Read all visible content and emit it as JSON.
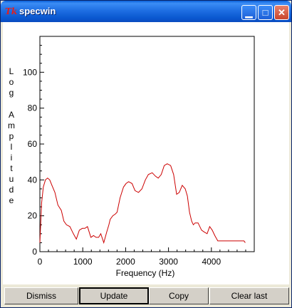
{
  "window": {
    "title": "specwin",
    "icon": "tk-feather-icon",
    "controls": {
      "minimize": "minimize-icon",
      "maximize": "maximize-icon",
      "close": "close-icon"
    }
  },
  "chart_data": {
    "type": "line",
    "title": "",
    "xlabel": "Frequency (Hz)",
    "ylabel": "Log Amplitude",
    "xlim": [
      0,
      5000
    ],
    "ylim": [
      0,
      120
    ],
    "x_ticks": [
      0,
      1000,
      2000,
      3000,
      4000
    ],
    "y_ticks": [
      0,
      20,
      40,
      60,
      80,
      100
    ],
    "grid": false,
    "series_color": "#cc0000",
    "x": [
      0,
      40,
      80,
      130,
      180,
      230,
      280,
      350,
      420,
      500,
      560,
      620,
      700,
      780,
      850,
      920,
      990,
      1050,
      1110,
      1190,
      1250,
      1310,
      1370,
      1420,
      1490,
      1560,
      1610,
      1640,
      1700,
      1760,
      1800,
      1870,
      1950,
      2010,
      2070,
      2150,
      2220,
      2300,
      2380,
      2460,
      2530,
      2620,
      2700,
      2760,
      2830,
      2900,
      2970,
      3050,
      3120,
      3190,
      3250,
      3320,
      3390,
      3440,
      3490,
      3540,
      3580,
      3620,
      3690,
      3770,
      3830,
      3900,
      3960,
      4020,
      4080,
      4150,
      4210,
      4260,
      4330,
      4400,
      4480,
      4550,
      4610,
      4670,
      4730,
      4760,
      4790
    ],
    "y": [
      5,
      27,
      36,
      40,
      41,
      40,
      37,
      33,
      26,
      23,
      17,
      15,
      14,
      10,
      7,
      12,
      13,
      13,
      14,
      8,
      9,
      8,
      8,
      10,
      5,
      11,
      15,
      18,
      20,
      21,
      22,
      30,
      36,
      38,
      39,
      38,
      34,
      33,
      35,
      40,
      43,
      44,
      42,
      41,
      43,
      48,
      49,
      48,
      43,
      32,
      33,
      37,
      35,
      31,
      22,
      17,
      15,
      16,
      16,
      12,
      11,
      10,
      14,
      12,
      9,
      6,
      6,
      6,
      6,
      6,
      6,
      6,
      6,
      6,
      6,
      6,
      5
    ]
  },
  "buttons": {
    "dismiss": "Dismiss",
    "update": "Update",
    "copy": "Copy",
    "clear_last": "Clear last"
  }
}
